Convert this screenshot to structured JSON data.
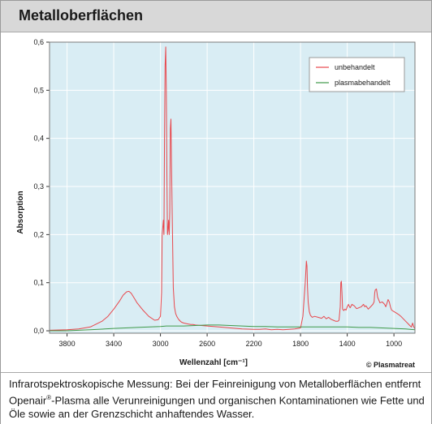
{
  "header": {
    "title": "Metalloberflächen"
  },
  "caption": {
    "part1": "Infrarotspektroskopische Messung: Bei der Feinreinigung von Metalloberflächen entfernt Openair",
    "mark": "®",
    "part2": "-Plasma alle Verunreinigungen und organischen Kontaminationen wie Fette und Öle sowie an der Grenzschicht anhaftendes Wasser."
  },
  "credit": "© Plasmatreat",
  "colors": {
    "plot_bg": "#d9edf4",
    "unbehandelt": "#e8474c",
    "plasmabehandelt": "#3f9a4a",
    "grid": "#ffffff"
  },
  "chart_data": {
    "type": "line",
    "xlabel": "Wellenzahl   [cm⁻¹]",
    "ylabel": "Absorption",
    "xlim": [
      3950,
      820
    ],
    "ylim": [
      -0.005,
      0.6
    ],
    "x_reversed": true,
    "grid": true,
    "legend_position": "top-right",
    "xticks": [
      3800,
      3400,
      3000,
      2600,
      2200,
      1800,
      1400,
      1000
    ],
    "xtick_labels": [
      "3800",
      "3400",
      "3000",
      "2600",
      "2200",
      "1800",
      "1400",
      "1000"
    ],
    "yticks": [
      0,
      0.1,
      0.2,
      0.3,
      0.4,
      0.5,
      0.6
    ],
    "ytick_labels": [
      "0,0",
      "0,1",
      "0,2",
      "0,3",
      "0,4",
      "0,5",
      "0,6"
    ],
    "series": [
      {
        "name": "unbehandelt",
        "color": "#e8474c",
        "x": [
          3950,
          3800,
          3700,
          3600,
          3500,
          3450,
          3400,
          3350,
          3320,
          3290,
          3270,
          3250,
          3220,
          3200,
          3150,
          3100,
          3050,
          3020,
          3000,
          2990,
          2985,
          2975,
          2970,
          2965,
          2960,
          2955,
          2950,
          2945,
          2940,
          2935,
          2930,
          2925,
          2920,
          2915,
          2910,
          2900,
          2890,
          2880,
          2870,
          2860,
          2855,
          2850,
          2845,
          2840,
          2835,
          2830,
          2820,
          2800,
          2780,
          2760,
          2740,
          2720,
          2700,
          2650,
          2600,
          2500,
          2400,
          2300,
          2200,
          2150,
          2100,
          2050,
          2000,
          1950,
          1900,
          1850,
          1800,
          1780,
          1760,
          1750,
          1745,
          1740,
          1735,
          1725,
          1715,
          1700,
          1680,
          1650,
          1620,
          1600,
          1580,
          1560,
          1540,
          1520,
          1500,
          1480,
          1470,
          1460,
          1455,
          1450,
          1445,
          1440,
          1430,
          1420,
          1410,
          1400,
          1390,
          1380,
          1375,
          1370,
          1360,
          1340,
          1320,
          1300,
          1280,
          1260,
          1250,
          1240,
          1220,
          1200,
          1180,
          1170,
          1165,
          1160,
          1150,
          1140,
          1120,
          1100,
          1080,
          1070,
          1060,
          1050,
          1040,
          1030,
          1020,
          1000,
          980,
          960,
          940,
          920,
          900,
          880,
          860,
          850,
          840,
          830,
          820
        ],
        "y": [
          0.001,
          0.002,
          0.004,
          0.008,
          0.02,
          0.03,
          0.045,
          0.062,
          0.074,
          0.081,
          0.082,
          0.078,
          0.066,
          0.058,
          0.043,
          0.03,
          0.022,
          0.023,
          0.03,
          0.08,
          0.2,
          0.23,
          0.2,
          0.4,
          0.55,
          0.59,
          0.5,
          0.33,
          0.2,
          0.21,
          0.23,
          0.2,
          0.25,
          0.42,
          0.44,
          0.25,
          0.09,
          0.05,
          0.036,
          0.03,
          0.028,
          0.026,
          0.024,
          0.022,
          0.022,
          0.02,
          0.018,
          0.016,
          0.015,
          0.014,
          0.013,
          0.013,
          0.012,
          0.011,
          0.01,
          0.008,
          0.006,
          0.004,
          0.003,
          0.003,
          0.004,
          0.002,
          0.003,
          0.002,
          0.003,
          0.004,
          0.006,
          0.03,
          0.1,
          0.145,
          0.135,
          0.09,
          0.06,
          0.04,
          0.032,
          0.028,
          0.03,
          0.028,
          0.026,
          0.03,
          0.025,
          0.028,
          0.024,
          0.022,
          0.02,
          0.02,
          0.022,
          0.05,
          0.1,
          0.103,
          0.08,
          0.045,
          0.042,
          0.045,
          0.043,
          0.05,
          0.055,
          0.05,
          0.048,
          0.05,
          0.055,
          0.052,
          0.046,
          0.048,
          0.05,
          0.055,
          0.05,
          0.052,
          0.045,
          0.05,
          0.055,
          0.06,
          0.078,
          0.085,
          0.087,
          0.07,
          0.058,
          0.06,
          0.055,
          0.05,
          0.057,
          0.065,
          0.06,
          0.05,
          0.043,
          0.04,
          0.037,
          0.034,
          0.03,
          0.025,
          0.02,
          0.015,
          0.01,
          0.008,
          0.016,
          0.008,
          0.004
        ]
      },
      {
        "name": "plasmabehandelt",
        "color": "#3f9a4a",
        "x": [
          3950,
          3800,
          3600,
          3400,
          3200,
          3000,
          2950,
          2900,
          2800,
          2700,
          2600,
          2500,
          2400,
          2300,
          2200,
          2100,
          2000,
          1900,
          1800,
          1700,
          1600,
          1500,
          1400,
          1300,
          1200,
          1100,
          1000,
          900,
          820
        ],
        "y": [
          0.0,
          0.0,
          0.002,
          0.005,
          0.007,
          0.009,
          0.01,
          0.01,
          0.01,
          0.011,
          0.012,
          0.012,
          0.011,
          0.01,
          0.009,
          0.009,
          0.008,
          0.008,
          0.008,
          0.008,
          0.008,
          0.008,
          0.008,
          0.007,
          0.007,
          0.006,
          0.005,
          0.004,
          0.002
        ]
      }
    ]
  }
}
